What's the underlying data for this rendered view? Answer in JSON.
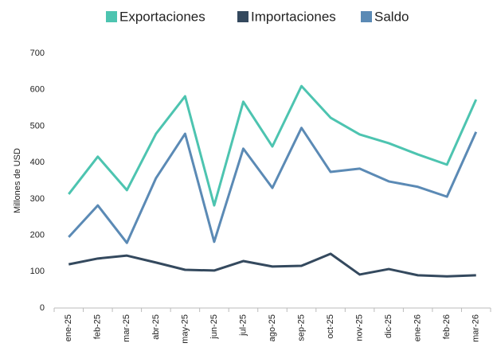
{
  "chart_data": {
    "type": "line",
    "y_axis_label": "Millones de USD",
    "categories": [
      "ene-25",
      "feb-25",
      "mar-25",
      "abr-25",
      "may-25",
      "jun-25",
      "jul-25",
      "ago-25",
      "sep-25",
      "oct-25",
      "nov-25",
      "dic-25",
      "ene-26",
      "feb-26",
      "mar-26"
    ],
    "series": [
      {
        "name": "Exportaciones",
        "color": "#4dc4b0",
        "values": [
          313,
          416,
          324,
          479,
          582,
          282,
          567,
          444,
          610,
          523,
          477,
          453,
          422,
          394,
          573
        ]
      },
      {
        "name": "Importaciones",
        "color": "#34495e",
        "values": [
          120,
          136,
          144,
          125,
          105,
          103,
          129,
          114,
          116,
          149,
          92,
          107,
          90,
          87,
          90
        ]
      },
      {
        "name": "Saldo",
        "color": "#5b8ab5",
        "values": [
          195,
          282,
          179,
          357,
          479,
          182,
          438,
          330,
          495,
          374,
          383,
          348,
          333,
          306,
          484
        ]
      }
    ],
    "ylim": [
      0,
      700
    ],
    "yticks": [
      0,
      100,
      200,
      300,
      400,
      500,
      600,
      700
    ],
    "grid": false,
    "legend": "top"
  }
}
